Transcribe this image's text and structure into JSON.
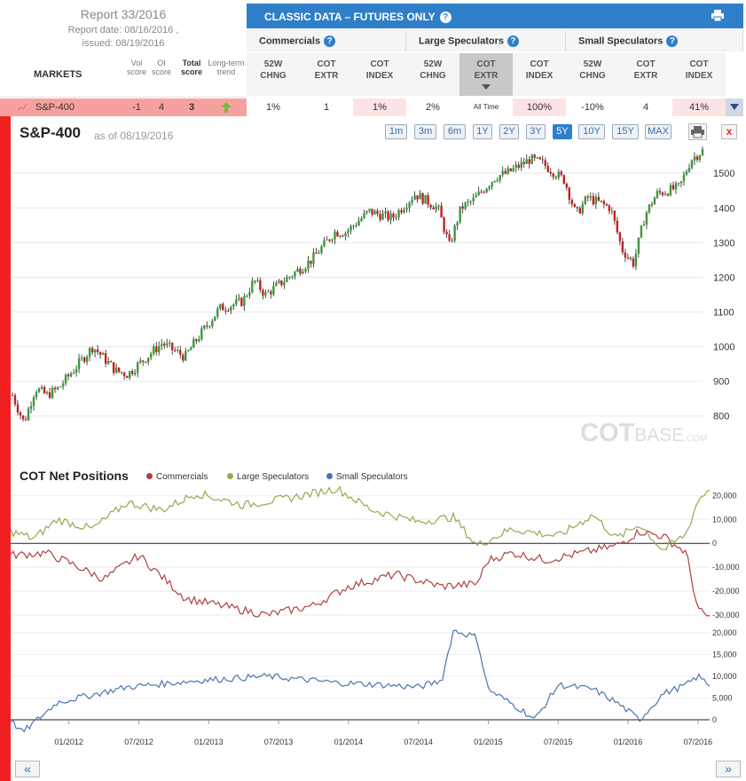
{
  "report": {
    "title": "Report 33/2016",
    "date": "Report date: 08/16/2016 ,",
    "issued": "issued: 08/19/2016"
  },
  "markets_label": "MARKETS",
  "score_headers": {
    "vol": [
      "Vol",
      "score"
    ],
    "oi": [
      "OI",
      "score"
    ],
    "total": [
      "Total",
      "score"
    ],
    "trend": [
      "Long-term",
      "trend"
    ]
  },
  "panel": {
    "title": "CLASSIC DATA – FUTURES ONLY",
    "help": "?"
  },
  "groups": [
    "Commercials",
    "Large Speculators",
    "Small Speculators"
  ],
  "columns": [
    [
      "52W",
      "CHNG"
    ],
    [
      "COT",
      "EXTR"
    ],
    [
      "COT",
      "INDEX"
    ],
    [
      "52W",
      "CHNG"
    ],
    [
      "COT",
      "EXTR"
    ],
    [
      "COT",
      "INDEX"
    ],
    [
      "52W",
      "CHNG"
    ],
    [
      "COT",
      "EXTR"
    ],
    [
      "COT",
      "INDEX"
    ]
  ],
  "row": {
    "market": "S&P-400",
    "vol": "-1",
    "oi": "4",
    "total": "3",
    "values": [
      "1%",
      "1",
      "1%",
      "2%",
      "All Time",
      "100%",
      "-10%",
      "4",
      "41%"
    ]
  },
  "price_chart": {
    "title": "S&P-400",
    "asof": "as of 08/19/2016"
  },
  "ranges": [
    "1m",
    "3m",
    "6m",
    "1Y",
    "2Y",
    "3Y",
    "5Y",
    "10Y",
    "15Y",
    "MAX"
  ],
  "active_range": "5Y",
  "close_label": "x",
  "watermark": {
    "a": "COT",
    "b": "BASE",
    "c": ".COM"
  },
  "cot_chart": {
    "title": "COT Net Positions"
  },
  "nav": {
    "prev": "«",
    "next": "»"
  },
  "colors": {
    "blue": "#2f7fc8",
    "up": "#3a9a3a",
    "down": "#c42020",
    "commercials": "#b04040",
    "large": "#8fac50",
    "small": "#4a76b0"
  },
  "chart_data": [
    {
      "type": "candlestick",
      "title": "S&P-400",
      "ylim": [
        720,
        1590
      ],
      "yticks": [
        800,
        900,
        1000,
        1100,
        1200,
        1300,
        1400,
        1500
      ],
      "x_start": "2011-08",
      "x_end": "2016-08",
      "close_anchors": [
        [
          "2011-08",
          860
        ],
        [
          "2011-09",
          780
        ],
        [
          "2011-10",
          880
        ],
        [
          "2011-11",
          860
        ],
        [
          "2011-12",
          880
        ],
        [
          "2012-02",
          960
        ],
        [
          "2012-03",
          1000
        ],
        [
          "2012-05",
          930
        ],
        [
          "2012-06",
          920
        ],
        [
          "2012-07",
          950
        ],
        [
          "2012-09",
          1010
        ],
        [
          "2012-10",
          990
        ],
        [
          "2012-11",
          970
        ],
        [
          "2012-12",
          1020
        ],
        [
          "2013-02",
          1110
        ],
        [
          "2013-04",
          1130
        ],
        [
          "2013-05",
          1190
        ],
        [
          "2013-06",
          1150
        ],
        [
          "2013-08",
          1200
        ],
        [
          "2013-10",
          1250
        ],
        [
          "2013-12",
          1330
        ],
        [
          "2014-01",
          1330
        ],
        [
          "2014-03",
          1390
        ],
        [
          "2014-05",
          1370
        ],
        [
          "2014-07",
          1440
        ],
        [
          "2014-09",
          1400
        ],
        [
          "2014-10",
          1290
        ],
        [
          "2014-11",
          1400
        ],
        [
          "2014-12",
          1420
        ],
        [
          "2015-02",
          1490
        ],
        [
          "2015-03",
          1500
        ],
        [
          "2015-05",
          1540
        ],
        [
          "2015-06",
          1530
        ],
        [
          "2015-08",
          1480
        ],
        [
          "2015-09",
          1380
        ],
        [
          "2015-10",
          1430
        ],
        [
          "2015-12",
          1400
        ],
        [
          "2016-01",
          1280
        ],
        [
          "2016-02",
          1240
        ],
        [
          "2016-03",
          1380
        ],
        [
          "2016-04",
          1440
        ],
        [
          "2016-06",
          1460
        ],
        [
          "2016-07",
          1540
        ],
        [
          "2016-08",
          1565
        ]
      ]
    },
    {
      "type": "line",
      "title": "COT Net Positions",
      "yticks_upper": [
        -30000,
        -20000,
        -10000,
        0,
        10000,
        20000
      ],
      "yticks_lower": [
        0,
        5000,
        10000,
        15000,
        20000
      ],
      "xticks": [
        "01/2012",
        "07/2012",
        "01/2013",
        "07/2013",
        "01/2014",
        "07/2014",
        "01/2015",
        "07/2015",
        "01/2016",
        "07/2016"
      ],
      "series": [
        {
          "name": "Commercials",
          "points": [
            [
              "2011-08",
              -5000
            ],
            [
              "2011-11",
              -4000
            ],
            [
              "2012-01",
              -8000
            ],
            [
              "2012-04",
              -15000
            ],
            [
              "2012-07",
              -5000
            ],
            [
              "2012-11",
              -23000
            ],
            [
              "2013-03",
              -27000
            ],
            [
              "2013-06",
              -30000
            ],
            [
              "2013-10",
              -26000
            ],
            [
              "2014-01",
              -18000
            ],
            [
              "2014-05",
              -13000
            ],
            [
              "2014-09",
              -18000
            ],
            [
              "2014-12",
              -17000
            ],
            [
              "2015-01",
              -7000
            ],
            [
              "2015-03",
              -4000
            ],
            [
              "2015-06",
              -7000
            ],
            [
              "2015-09",
              -4000
            ],
            [
              "2015-12",
              -1000
            ],
            [
              "2016-02",
              5000
            ],
            [
              "2016-04",
              3000
            ],
            [
              "2016-06",
              -4000
            ],
            [
              "2016-07",
              -28000
            ],
            [
              "2016-08",
              -31000
            ]
          ]
        },
        {
          "name": "Large Speculators",
          "points": [
            [
              "2011-08",
              5000
            ],
            [
              "2011-10",
              2000
            ],
            [
              "2011-12",
              10000
            ],
            [
              "2012-03",
              6000
            ],
            [
              "2012-06",
              17000
            ],
            [
              "2012-09",
              14000
            ],
            [
              "2012-12",
              21000
            ],
            [
              "2013-04",
              16000
            ],
            [
              "2013-08",
              19000
            ],
            [
              "2013-12",
              23000
            ],
            [
              "2014-03",
              14000
            ],
            [
              "2014-07",
              9000
            ],
            [
              "2014-10",
              11000
            ],
            [
              "2014-12",
              -1000
            ],
            [
              "2015-03",
              6000
            ],
            [
              "2015-07",
              3000
            ],
            [
              "2015-10",
              12000
            ],
            [
              "2015-12",
              2000
            ],
            [
              "2016-02",
              8000
            ],
            [
              "2016-04",
              -3000
            ],
            [
              "2016-06",
              4000
            ],
            [
              "2016-07",
              18000
            ],
            [
              "2016-08",
              23000
            ]
          ]
        },
        {
          "name": "Small Speculators",
          "points": [
            [
              "2011-08",
              0
            ],
            [
              "2011-09",
              -3000
            ],
            [
              "2011-12",
              4000
            ],
            [
              "2012-06",
              7500
            ],
            [
              "2012-12",
              9000
            ],
            [
              "2013-06",
              10000
            ],
            [
              "2013-12",
              8500
            ],
            [
              "2014-04",
              8000
            ],
            [
              "2014-07",
              7500
            ],
            [
              "2014-09",
              9000
            ],
            [
              "2014-10",
              20500
            ],
            [
              "2014-12",
              19000
            ],
            [
              "2015-01",
              7000
            ],
            [
              "2015-04",
              2000
            ],
            [
              "2015-05",
              0
            ],
            [
              "2015-07",
              8000
            ],
            [
              "2015-10",
              7000
            ],
            [
              "2015-12",
              4000
            ],
            [
              "2016-02",
              0
            ],
            [
              "2016-04",
              6000
            ],
            [
              "2016-06",
              8000
            ],
            [
              "2016-07",
              10000
            ],
            [
              "2016-08",
              8000
            ]
          ]
        }
      ]
    }
  ]
}
